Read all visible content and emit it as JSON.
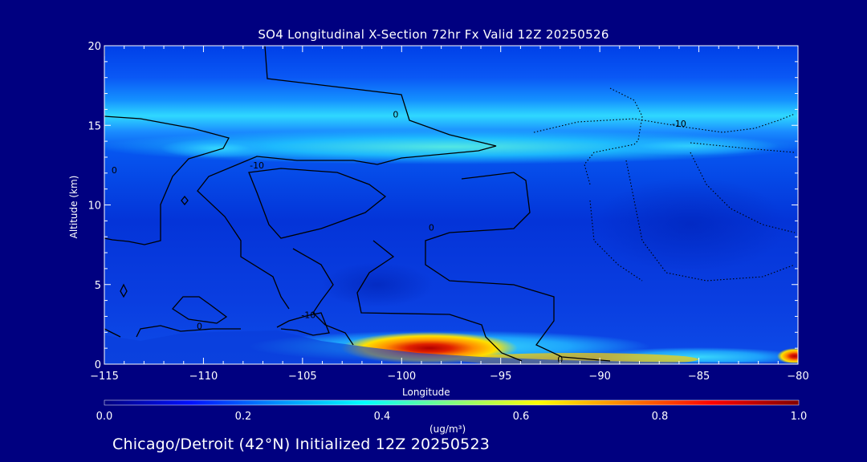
{
  "chart_data": {
    "type": "heatmap",
    "title": "SO4 Longitudinal X-Section 72hr  Fx Valid 12Z 20250526",
    "xlabel": "Longitude",
    "ylabel": "Altitude (km)",
    "xlim": [
      -115,
      -80
    ],
    "ylim": [
      0,
      20
    ],
    "x_ticks": [
      -115,
      -110,
      -105,
      -100,
      -95,
      -90,
      -85,
      -80
    ],
    "y_ticks": [
      0,
      5,
      10,
      15,
      20
    ],
    "colorbar": {
      "label": "(ug/m³)",
      "min": 0.0,
      "max": 1.0,
      "ticks": [
        "0.0",
        "0.2",
        "0.4",
        "0.6",
        "0.8",
        "1.0"
      ],
      "colors": [
        "#000080",
        "#0010ff",
        "#0090ff",
        "#00ffff",
        "#80ff80",
        "#ffff00",
        "#ff8000",
        "#ff0000",
        "#800000"
      ]
    },
    "features": [
      {
        "name": "upper-layer",
        "lon_range": [
          -115,
          -80
        ],
        "alt_km": 13.5,
        "peak_value": 0.4
      },
      {
        "name": "surface-plume",
        "lon": -98.5,
        "alt_km": 1.0,
        "peak_value": 0.9
      },
      {
        "name": "surface-edge",
        "lon": -80.2,
        "alt_km": 0.6,
        "peak_value": 0.9
      }
    ],
    "contour_labels": [
      {
        "text": "0",
        "lon": -100.3,
        "alt_km": 15.5
      },
      {
        "text": "-10",
        "lon": -86.0,
        "alt_km": 14.9
      },
      {
        "text": "-10",
        "lon": -107.3,
        "alt_km": 12.3
      },
      {
        "text": "0",
        "lon": -114.5,
        "alt_km": 12.0
      },
      {
        "text": "0",
        "lon": -98.5,
        "alt_km": 8.4
      },
      {
        "text": "-10",
        "lon": -104.7,
        "alt_km": 2.9
      },
      {
        "text": "0",
        "lon": -110.2,
        "alt_km": 2.2
      },
      {
        "text": "0",
        "lon": -92.0,
        "alt_km": 0.1
      }
    ],
    "grid": false
  },
  "footer": "Chicago/Detroit (42°N) Initialized 12Z 20250523"
}
